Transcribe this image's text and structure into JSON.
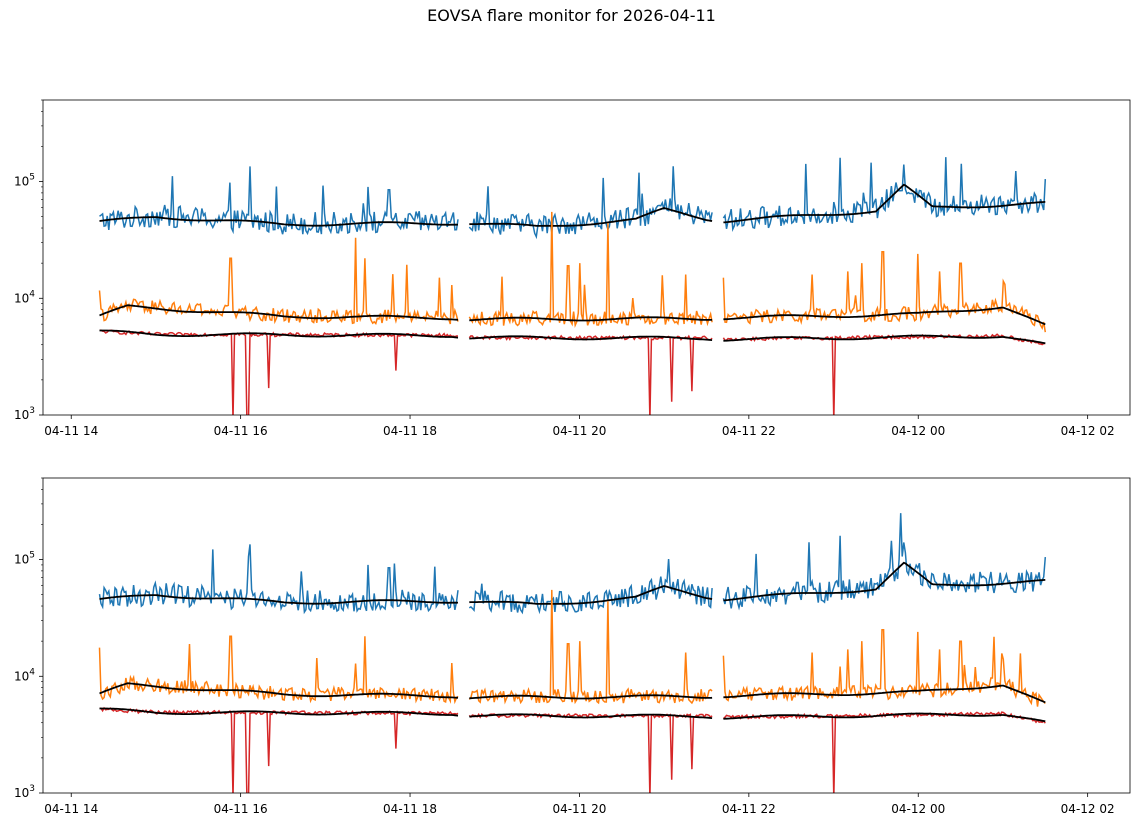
{
  "title": "EOVSA flare monitor for 2026-04-11",
  "colors": {
    "series_blue": "#1f77b4",
    "series_orange": "#ff7f0e",
    "series_red": "#d62728",
    "smooth_black": "#000000",
    "axes": "#000000",
    "background": "#ffffff"
  },
  "chart_data": [
    {
      "type": "line",
      "yscale": "log",
      "ylim": [
        1000,
        500000
      ],
      "xlim": [
        "2026-04-11 13:40",
        "2026-04-12 02:30"
      ],
      "xticks": [
        "04-11 14",
        "04-11 16",
        "04-11 18",
        "04-11 20",
        "04-11 22",
        "04-12 00",
        "04-12 02"
      ],
      "yticks": [
        {
          "value": 1000,
          "base": "10",
          "exp": "3"
        },
        {
          "value": 10000,
          "base": "10",
          "exp": "4"
        },
        {
          "value": 100000,
          "base": "10",
          "exp": "5"
        }
      ],
      "grid": false,
      "gaps": [
        [
          "2026-04-11 18:34",
          "2026-04-11 18:42"
        ],
        [
          "2026-04-11 21:34",
          "2026-04-11 21:42"
        ]
      ],
      "series": [
        {
          "color": "#1f77b4",
          "base_profile": [
            [
              "2026-04-11 14:20",
              45000
            ],
            [
              "2026-04-11 15:00",
              50000
            ],
            [
              "2026-04-11 16:30",
              43000
            ],
            [
              "2026-04-11 18:30",
              44000
            ],
            [
              "2026-04-11 18:42",
              44000
            ],
            [
              "2026-04-11 19:30",
              41000
            ],
            [
              "2026-04-11 20:40",
              47000
            ],
            [
              "2026-04-11 21:00",
              58000
            ],
            [
              "2026-04-11 21:30",
              48000
            ],
            [
              "2026-04-11 21:42",
              46000
            ],
            [
              "2026-04-11 22:30",
              50000
            ],
            [
              "2026-04-11 23:30",
              56000
            ],
            [
              "2026-04-11 23:50",
              92000
            ],
            [
              "2026-04-12 00:10",
              60000
            ],
            [
              "2026-04-12 01:30",
              65000
            ]
          ],
          "noise": 0.22,
          "spikes": [
            [
              "2026-04-11 16:07",
              135000
            ],
            [
              "2026-04-11 17:30",
              90000
            ],
            [
              "2026-04-11 17:45",
              85000
            ],
            [
              "2026-04-11 23:05",
              160000
            ],
            [
              "2026-04-11 23:50",
              140000
            ],
            [
              "2026-04-12 01:30",
              105000
            ]
          ]
        },
        {
          "color": "#ff7f0e",
          "base_profile": [
            [
              "2026-04-11 14:20",
              7000
            ],
            [
              "2026-04-11 14:40",
              8500
            ],
            [
              "2026-04-11 15:30",
              7800
            ],
            [
              "2026-04-11 16:30",
              7000
            ],
            [
              "2026-04-11 18:30",
              6800
            ],
            [
              "2026-04-11 18:42",
              6600
            ],
            [
              "2026-04-11 21:30",
              6700
            ],
            [
              "2026-04-11 21:42",
              6800
            ],
            [
              "2026-04-12 00:00",
              7300
            ],
            [
              "2026-04-12 01:00",
              8500
            ],
            [
              "2026-04-12 01:30",
              5800
            ]
          ],
          "noise": 0.14,
          "spikes": [
            [
              "2026-04-11 15:53",
              22000
            ],
            [
              "2026-04-11 17:21",
              33000
            ],
            [
              "2026-04-11 17:28",
              22000
            ],
            [
              "2026-04-11 18:30",
              13000
            ],
            [
              "2026-04-11 19:40",
              55000
            ],
            [
              "2026-04-11 19:52",
              19000
            ],
            [
              "2026-04-11 20:00",
              20000
            ],
            [
              "2026-04-11 20:20",
              44000
            ],
            [
              "2026-04-11 21:15",
              16000
            ],
            [
              "2026-04-11 21:42",
              15000
            ],
            [
              "2026-04-11 22:45",
              16000
            ],
            [
              "2026-04-11 23:10",
              17000
            ],
            [
              "2026-04-11 23:20",
              20000
            ],
            [
              "2026-04-11 23:35",
              25000
            ],
            [
              "2026-04-12 00:00",
              24000
            ],
            [
              "2026-04-12 00:15",
              17000
            ],
            [
              "2026-04-12 00:30",
              20000
            ],
            [
              "2026-04-12 01:00",
              14000
            ]
          ]
        },
        {
          "color": "#d62728",
          "base_profile": [
            [
              "2026-04-11 14:20",
              5200
            ],
            [
              "2026-04-11 15:00",
              4900
            ],
            [
              "2026-04-11 18:30",
              4800
            ],
            [
              "2026-04-11 18:42",
              4600
            ],
            [
              "2026-04-11 21:30",
              4550
            ],
            [
              "2026-04-11 21:42",
              4450
            ],
            [
              "2026-04-12 01:00",
              4750
            ],
            [
              "2026-04-12 01:30",
              4000
            ]
          ],
          "noise": 0.035,
          "dips": [
            [
              "2026-04-11 15:55",
              900
            ],
            [
              "2026-04-11 16:05",
              900
            ],
            [
              "2026-04-11 16:20",
              1700
            ],
            [
              "2026-04-11 17:50",
              2400
            ],
            [
              "2026-04-11 20:50",
              900
            ],
            [
              "2026-04-11 21:05",
              1300
            ],
            [
              "2026-04-11 21:20",
              1600
            ],
            [
              "2026-04-11 23:00",
              900
            ]
          ]
        }
      ]
    },
    {
      "type": "line",
      "yscale": "log",
      "ylim": [
        1000,
        500000
      ],
      "xlim": [
        "2026-04-11 13:40",
        "2026-04-12 02:30"
      ],
      "xticks": [
        "04-11 14",
        "04-11 16",
        "04-11 18",
        "04-11 20",
        "04-11 22",
        "04-12 00",
        "04-12 02"
      ],
      "yticks": [
        {
          "value": 1000,
          "base": "10",
          "exp": "3"
        },
        {
          "value": 10000,
          "base": "10",
          "exp": "4"
        },
        {
          "value": 100000,
          "base": "10",
          "exp": "5"
        }
      ],
      "grid": false,
      "gaps": [
        [
          "2026-04-11 18:34",
          "2026-04-11 18:42"
        ],
        [
          "2026-04-11 21:34",
          "2026-04-11 21:42"
        ]
      ],
      "series": [
        {
          "color": "#1f77b4",
          "base_profile": [
            [
              "2026-04-11 14:20",
              45000
            ],
            [
              "2026-04-11 15:00",
              50000
            ],
            [
              "2026-04-11 16:30",
              43000
            ],
            [
              "2026-04-11 18:30",
              44000
            ],
            [
              "2026-04-11 18:42",
              44000
            ],
            [
              "2026-04-11 19:30",
              41000
            ],
            [
              "2026-04-11 20:40",
              47000
            ],
            [
              "2026-04-11 21:00",
              58000
            ],
            [
              "2026-04-11 21:30",
              48000
            ],
            [
              "2026-04-11 21:42",
              46000
            ],
            [
              "2026-04-11 22:30",
              50000
            ],
            [
              "2026-04-11 23:30",
              56000
            ],
            [
              "2026-04-11 23:50",
              92000
            ],
            [
              "2026-04-12 00:10",
              60000
            ],
            [
              "2026-04-12 01:30",
              65000
            ]
          ],
          "noise": 0.22,
          "spikes": [
            [
              "2026-04-11 16:07",
              135000
            ],
            [
              "2026-04-11 17:30",
              90000
            ],
            [
              "2026-04-11 17:45",
              85000
            ],
            [
              "2026-04-11 23:05",
              160000
            ],
            [
              "2026-04-11 23:50",
              140000
            ],
            [
              "2026-04-12 01:30",
              105000
            ]
          ]
        },
        {
          "color": "#ff7f0e",
          "base_profile": [
            [
              "2026-04-11 14:20",
              7000
            ],
            [
              "2026-04-11 14:40",
              8500
            ],
            [
              "2026-04-11 15:30",
              7800
            ],
            [
              "2026-04-11 16:30",
              7000
            ],
            [
              "2026-04-11 18:30",
              6800
            ],
            [
              "2026-04-11 18:42",
              6600
            ],
            [
              "2026-04-11 21:30",
              6700
            ],
            [
              "2026-04-11 21:42",
              6800
            ],
            [
              "2026-04-12 00:00",
              7300
            ],
            [
              "2026-04-12 01:00",
              8500
            ],
            [
              "2026-04-12 01:30",
              5800
            ]
          ],
          "noise": 0.14,
          "spikes": [
            [
              "2026-04-11 15:53",
              22000
            ],
            [
              "2026-04-11 17:21",
              33000
            ],
            [
              "2026-04-11 17:28",
              22000
            ],
            [
              "2026-04-11 18:30",
              13000
            ],
            [
              "2026-04-11 19:40",
              55000
            ],
            [
              "2026-04-11 19:52",
              19000
            ],
            [
              "2026-04-11 20:00",
              20000
            ],
            [
              "2026-04-11 20:20",
              44000
            ],
            [
              "2026-04-11 21:15",
              16000
            ],
            [
              "2026-04-11 21:42",
              15000
            ],
            [
              "2026-04-11 22:45",
              16000
            ],
            [
              "2026-04-11 23:10",
              17000
            ],
            [
              "2026-04-11 23:20",
              20000
            ],
            [
              "2026-04-11 23:35",
              25000
            ],
            [
              "2026-04-12 00:00",
              24000
            ],
            [
              "2026-04-12 00:15",
              17000
            ],
            [
              "2026-04-12 00:30",
              20000
            ],
            [
              "2026-04-12 01:00",
              14000
            ]
          ]
        },
        {
          "color": "#d62728",
          "base_profile": [
            [
              "2026-04-11 14:20",
              5200
            ],
            [
              "2026-04-11 15:00",
              4900
            ],
            [
              "2026-04-11 18:30",
              4800
            ],
            [
              "2026-04-11 18:42",
              4600
            ],
            [
              "2026-04-11 21:30",
              4550
            ],
            [
              "2026-04-11 21:42",
              4450
            ],
            [
              "2026-04-12 01:00",
              4750
            ],
            [
              "2026-04-12 01:30",
              4000
            ]
          ],
          "noise": 0.035,
          "dips": [
            [
              "2026-04-11 15:55",
              900
            ],
            [
              "2026-04-11 16:05",
              900
            ],
            [
              "2026-04-11 16:20",
              1700
            ],
            [
              "2026-04-11 17:50",
              2400
            ],
            [
              "2026-04-11 20:50",
              900
            ],
            [
              "2026-04-11 21:05",
              1300
            ],
            [
              "2026-04-11 21:20",
              1600
            ],
            [
              "2026-04-11 23:00",
              900
            ]
          ]
        }
      ]
    }
  ]
}
